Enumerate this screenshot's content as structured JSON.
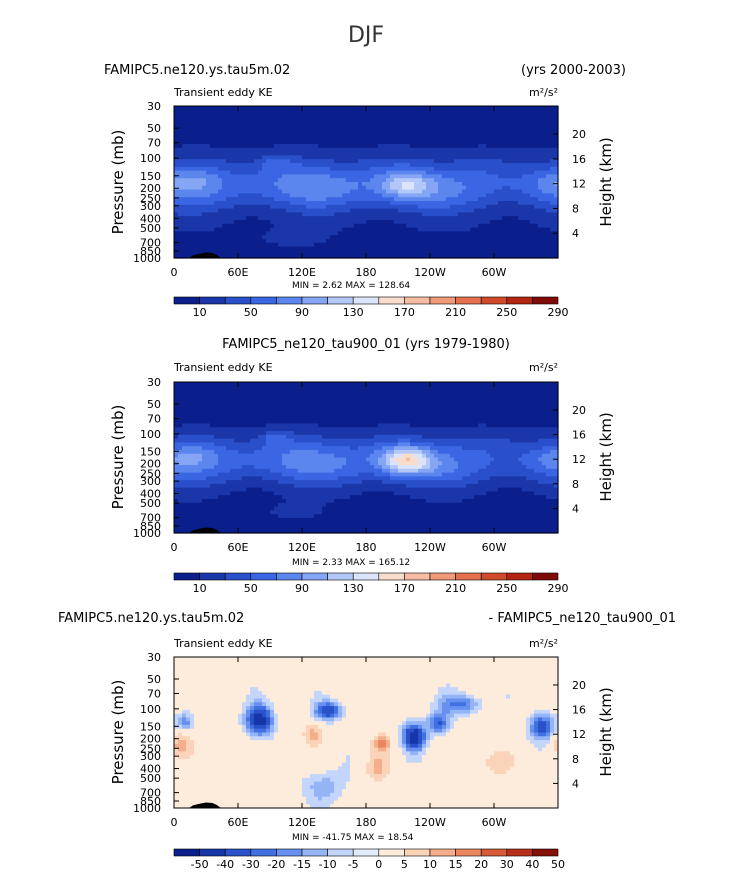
{
  "figure_title": "DJF",
  "chart_data": [
    {
      "type": "heatmap",
      "panel": "top",
      "left_title": "FAMIPC5.ne120.ys.tau5m.02",
      "right_title": "(yrs 2000-2003)",
      "subtitle": "Transient eddy KE",
      "units": "m2/s2",
      "units_display": "m²/s²",
      "ylabel": "Pressure (mb)",
      "ylabel_right": "Height (km)",
      "x_ticks": [
        "0",
        "60E",
        "120E",
        "180",
        "120W",
        "60W"
      ],
      "y_ticks": [
        "30",
        "50",
        "70",
        "100",
        "150",
        "200",
        "250",
        "300",
        "400",
        "500",
        "700",
        "850",
        "1000"
      ],
      "height_ticks": [
        "20",
        "16",
        "12",
        "8",
        "4"
      ],
      "min": 2.62,
      "max": 128.64,
      "stats": "MIN =    2.62   MAX = 128.64",
      "colorbar_labels": [
        "10",
        "50",
        "90",
        "130",
        "170",
        "210",
        "250",
        "290"
      ],
      "max_location": {
        "lon": 218,
        "pressure": 200
      }
    },
    {
      "type": "heatmap",
      "panel": "middle",
      "left_title": "FAMIPC5_ne120_tau900_01 (yrs 1979-1980)",
      "subtitle": "Transient eddy KE",
      "units": "m2/s2",
      "units_display": "m²/s²",
      "ylabel": "Pressure (mb)",
      "ylabel_right": "Height (km)",
      "x_ticks": [
        "0",
        "60E",
        "120E",
        "180",
        "120W",
        "60W"
      ],
      "y_ticks": [
        "30",
        "50",
        "70",
        "100",
        "150",
        "200",
        "250",
        "300",
        "400",
        "500",
        "700",
        "850",
        "1000"
      ],
      "height_ticks": [
        "20",
        "16",
        "12",
        "8",
        "4"
      ],
      "min": 2.33,
      "max": 165.12,
      "stats": "MIN =    2.33   MAX = 165.12",
      "colorbar_labels": [
        "10",
        "50",
        "90",
        "130",
        "170",
        "210",
        "250",
        "290"
      ],
      "max_location": {
        "lon": 220,
        "pressure": 200
      }
    },
    {
      "type": "heatmap",
      "panel": "bottom",
      "left_title": "FAMIPC5.ne120.ys.tau5m.02",
      "right_title": "- FAMIPC5_ne120_tau900_01",
      "subtitle": "Transient eddy KE",
      "units": "m2/s2",
      "units_display": "m²/s²",
      "ylabel": "Pressure (mb)",
      "ylabel_right": "Height (km)",
      "x_ticks": [
        "0",
        "60E",
        "120E",
        "180",
        "120W",
        "60W"
      ],
      "y_ticks": [
        "30",
        "50",
        "70",
        "100",
        "150",
        "200",
        "250",
        "300",
        "400",
        "500",
        "700",
        "850",
        "1000"
      ],
      "height_ticks": [
        "20",
        "16",
        "12",
        "8",
        "4"
      ],
      "min": -41.75,
      "max": 18.54,
      "stats": "MIN = -41.75   MAX =  18.54",
      "colorbar_labels": [
        "-50",
        "-40",
        "-30",
        "-20",
        "-15",
        "-10",
        "-5",
        "0",
        "5",
        "10",
        "15",
        "20",
        "30",
        "40",
        "50"
      ]
    }
  ],
  "colors": {
    "seq": [
      "#0a1f8c",
      "#1a36a8",
      "#2a4fcb",
      "#3a66e3",
      "#5a86ee",
      "#84a6f4",
      "#b3c8f8",
      "#dbe4fb",
      "#f8dccc",
      "#f5bca3",
      "#f09a7a",
      "#e5714f",
      "#d24a2c",
      "#b42512",
      "#7f0a06"
    ],
    "div": [
      "#0a1f8c",
      "#1536a8",
      "#2a52c8",
      "#4170e0",
      "#6891ef",
      "#95b4f6",
      "#c3d5fa",
      "#e2ebfc",
      "#fdecdc",
      "#fbd3b9",
      "#f5ae8b",
      "#ec865f",
      "#d95a38",
      "#b8301a",
      "#841006"
    ]
  }
}
